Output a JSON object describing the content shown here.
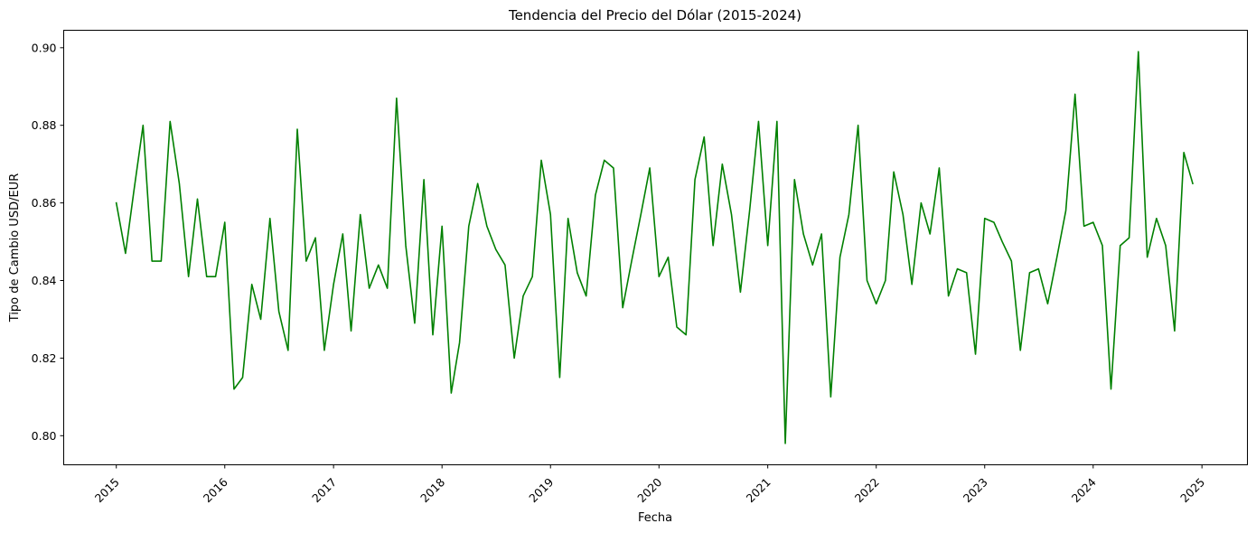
{
  "chart_data": {
    "type": "line",
    "title": "Tendencia del Precio del Dólar (2015-2024)",
    "xlabel": "Fecha",
    "ylabel": "Tipo de Cambio USD/EUR",
    "grid": false,
    "legend": "none",
    "line_color": "#008000",
    "xlim": [
      "2014-07-08",
      "2025-06-03"
    ],
    "ylim": [
      0.7925,
      0.9045
    ],
    "x_ticks": [
      "2015",
      "2016",
      "2017",
      "2018",
      "2019",
      "2020",
      "2021",
      "2022",
      "2023",
      "2024",
      "2025"
    ],
    "y_ticks": [
      "0.80",
      "0.82",
      "0.84",
      "0.86",
      "0.88",
      "0.90"
    ],
    "series": [
      {
        "x": [
          "2015-01-01",
          "2015-02-01",
          "2015-03-01",
          "2015-04-01",
          "2015-05-01",
          "2015-06-01",
          "2015-07-01",
          "2015-08-01",
          "2015-09-01",
          "2015-10-01",
          "2015-11-01",
          "2015-12-01",
          "2016-01-01",
          "2016-02-01",
          "2016-03-01",
          "2016-04-01",
          "2016-05-01",
          "2016-06-01",
          "2016-07-01",
          "2016-08-01",
          "2016-09-01",
          "2016-10-01",
          "2016-11-01",
          "2016-12-01",
          "2017-01-01",
          "2017-02-01",
          "2017-03-01",
          "2017-04-01",
          "2017-05-01",
          "2017-06-01",
          "2017-07-01",
          "2017-08-01",
          "2017-09-01",
          "2017-10-01",
          "2017-11-01",
          "2017-12-01",
          "2018-01-01",
          "2018-02-01",
          "2018-03-01",
          "2018-04-01",
          "2018-05-01",
          "2018-06-01",
          "2018-07-01",
          "2018-08-01",
          "2018-09-01",
          "2018-10-01",
          "2018-11-01",
          "2018-12-01",
          "2019-01-01",
          "2019-02-01",
          "2019-03-01",
          "2019-04-01",
          "2019-05-01",
          "2019-06-01",
          "2019-07-01",
          "2019-08-01",
          "2019-09-01",
          "2019-10-01",
          "2019-11-01",
          "2019-12-01",
          "2020-01-01",
          "2020-02-01",
          "2020-03-01",
          "2020-04-01",
          "2020-05-01",
          "2020-06-01",
          "2020-07-01",
          "2020-08-01",
          "2020-09-01",
          "2020-10-01",
          "2020-11-01",
          "2020-12-01",
          "2021-01-01",
          "2021-02-01",
          "2021-03-01",
          "2021-04-01",
          "2021-05-01",
          "2021-06-01",
          "2021-07-01",
          "2021-08-01",
          "2021-09-01",
          "2021-10-01",
          "2021-11-01",
          "2021-12-01",
          "2022-01-01",
          "2022-02-01",
          "2022-03-01",
          "2022-04-01",
          "2022-05-01",
          "2022-06-01",
          "2022-07-01",
          "2022-08-01",
          "2022-09-01",
          "2022-10-01",
          "2022-11-01",
          "2022-12-01",
          "2023-01-01",
          "2023-02-01",
          "2023-03-01",
          "2023-04-01",
          "2023-05-01",
          "2023-06-01",
          "2023-07-01",
          "2023-08-01",
          "2023-09-01",
          "2023-10-01",
          "2023-11-01",
          "2023-12-01",
          "2024-01-01",
          "2024-02-01",
          "2024-03-01",
          "2024-04-01",
          "2024-05-01",
          "2024-06-01",
          "2024-07-01",
          "2024-08-01",
          "2024-09-01",
          "2024-10-01",
          "2024-11-01",
          "2024-12-01"
        ],
        "y": [
          0.86,
          0.847,
          0.863,
          0.88,
          0.845,
          0.845,
          0.881,
          0.865,
          0.841,
          0.861,
          0.841,
          0.841,
          0.855,
          0.812,
          0.815,
          0.839,
          0.83,
          0.856,
          0.832,
          0.822,
          0.879,
          0.845,
          0.851,
          0.822,
          0.839,
          0.852,
          0.827,
          0.857,
          0.838,
          0.844,
          0.838,
          0.887,
          0.849,
          0.829,
          0.866,
          0.826,
          0.854,
          0.811,
          0.824,
          0.854,
          0.865,
          0.854,
          0.848,
          0.844,
          0.82,
          0.836,
          0.841,
          0.871,
          0.857,
          0.815,
          0.856,
          0.842,
          0.836,
          0.862,
          0.871,
          0.869,
          0.833,
          0.845,
          0.857,
          0.869,
          0.841,
          0.846,
          0.828,
          0.826,
          0.866,
          0.877,
          0.849,
          0.87,
          0.857,
          0.837,
          0.858,
          0.881,
          0.849,
          0.881,
          0.798,
          0.866,
          0.852,
          0.844,
          0.852,
          0.81,
          0.846,
          0.857,
          0.88,
          0.84,
          0.834,
          0.84,
          0.868,
          0.857,
          0.839,
          0.86,
          0.852,
          0.869,
          0.836,
          0.843,
          0.842,
          0.821,
          0.856,
          0.855,
          0.85,
          0.845,
          0.822,
          0.842,
          0.843,
          0.834,
          0.846,
          0.858,
          0.888,
          0.854,
          0.855,
          0.849,
          0.812,
          0.849,
          0.851,
          0.899,
          0.846,
          0.856,
          0.849,
          0.827,
          0.873,
          0.865
        ]
      }
    ]
  }
}
